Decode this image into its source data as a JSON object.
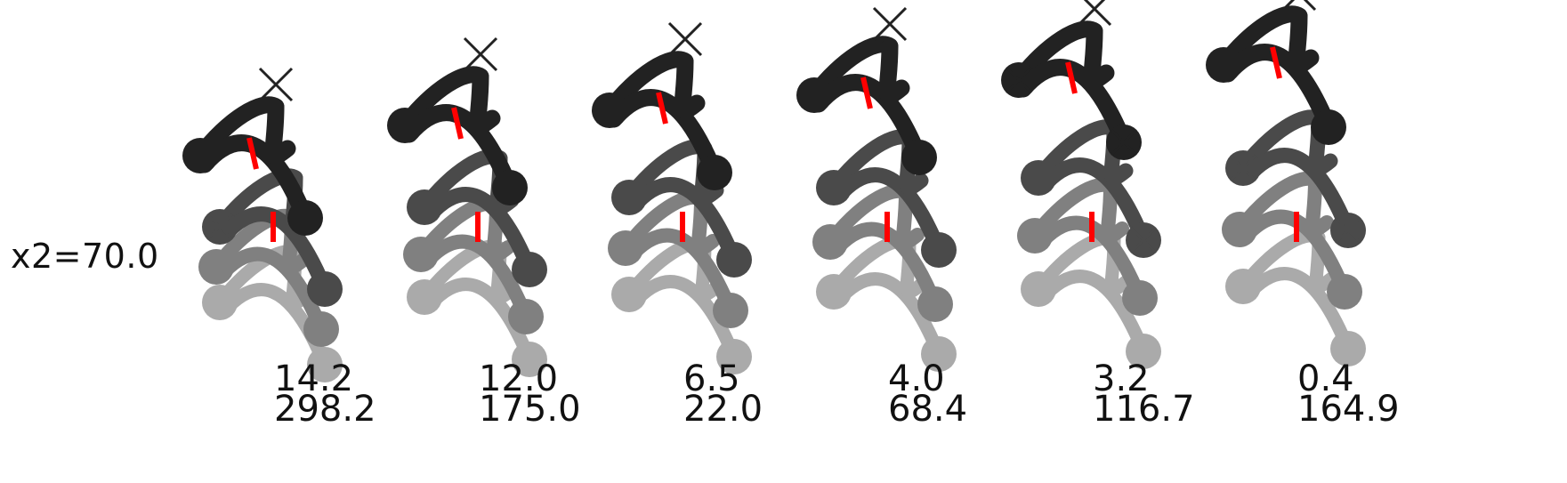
{
  "row_label": "x2=70.0",
  "panels": [
    {
      "top_value": "14.2",
      "bottom_value": "298.2"
    },
    {
      "top_value": "12.0",
      "bottom_value": "175.0"
    },
    {
      "top_value": "6.5",
      "bottom_value": "22.0"
    },
    {
      "top_value": "4.0",
      "bottom_value": "68.4"
    },
    {
      "top_value": "3.2",
      "bottom_value": "116.7"
    },
    {
      "top_value": "0.4",
      "bottom_value": "164.9"
    }
  ],
  "colors": {
    "layer_shades": [
      "#aaaaaa",
      "#808080",
      "#4a4a4a",
      "#222222"
    ],
    "marker": "#ff0000",
    "text": "#111111"
  }
}
